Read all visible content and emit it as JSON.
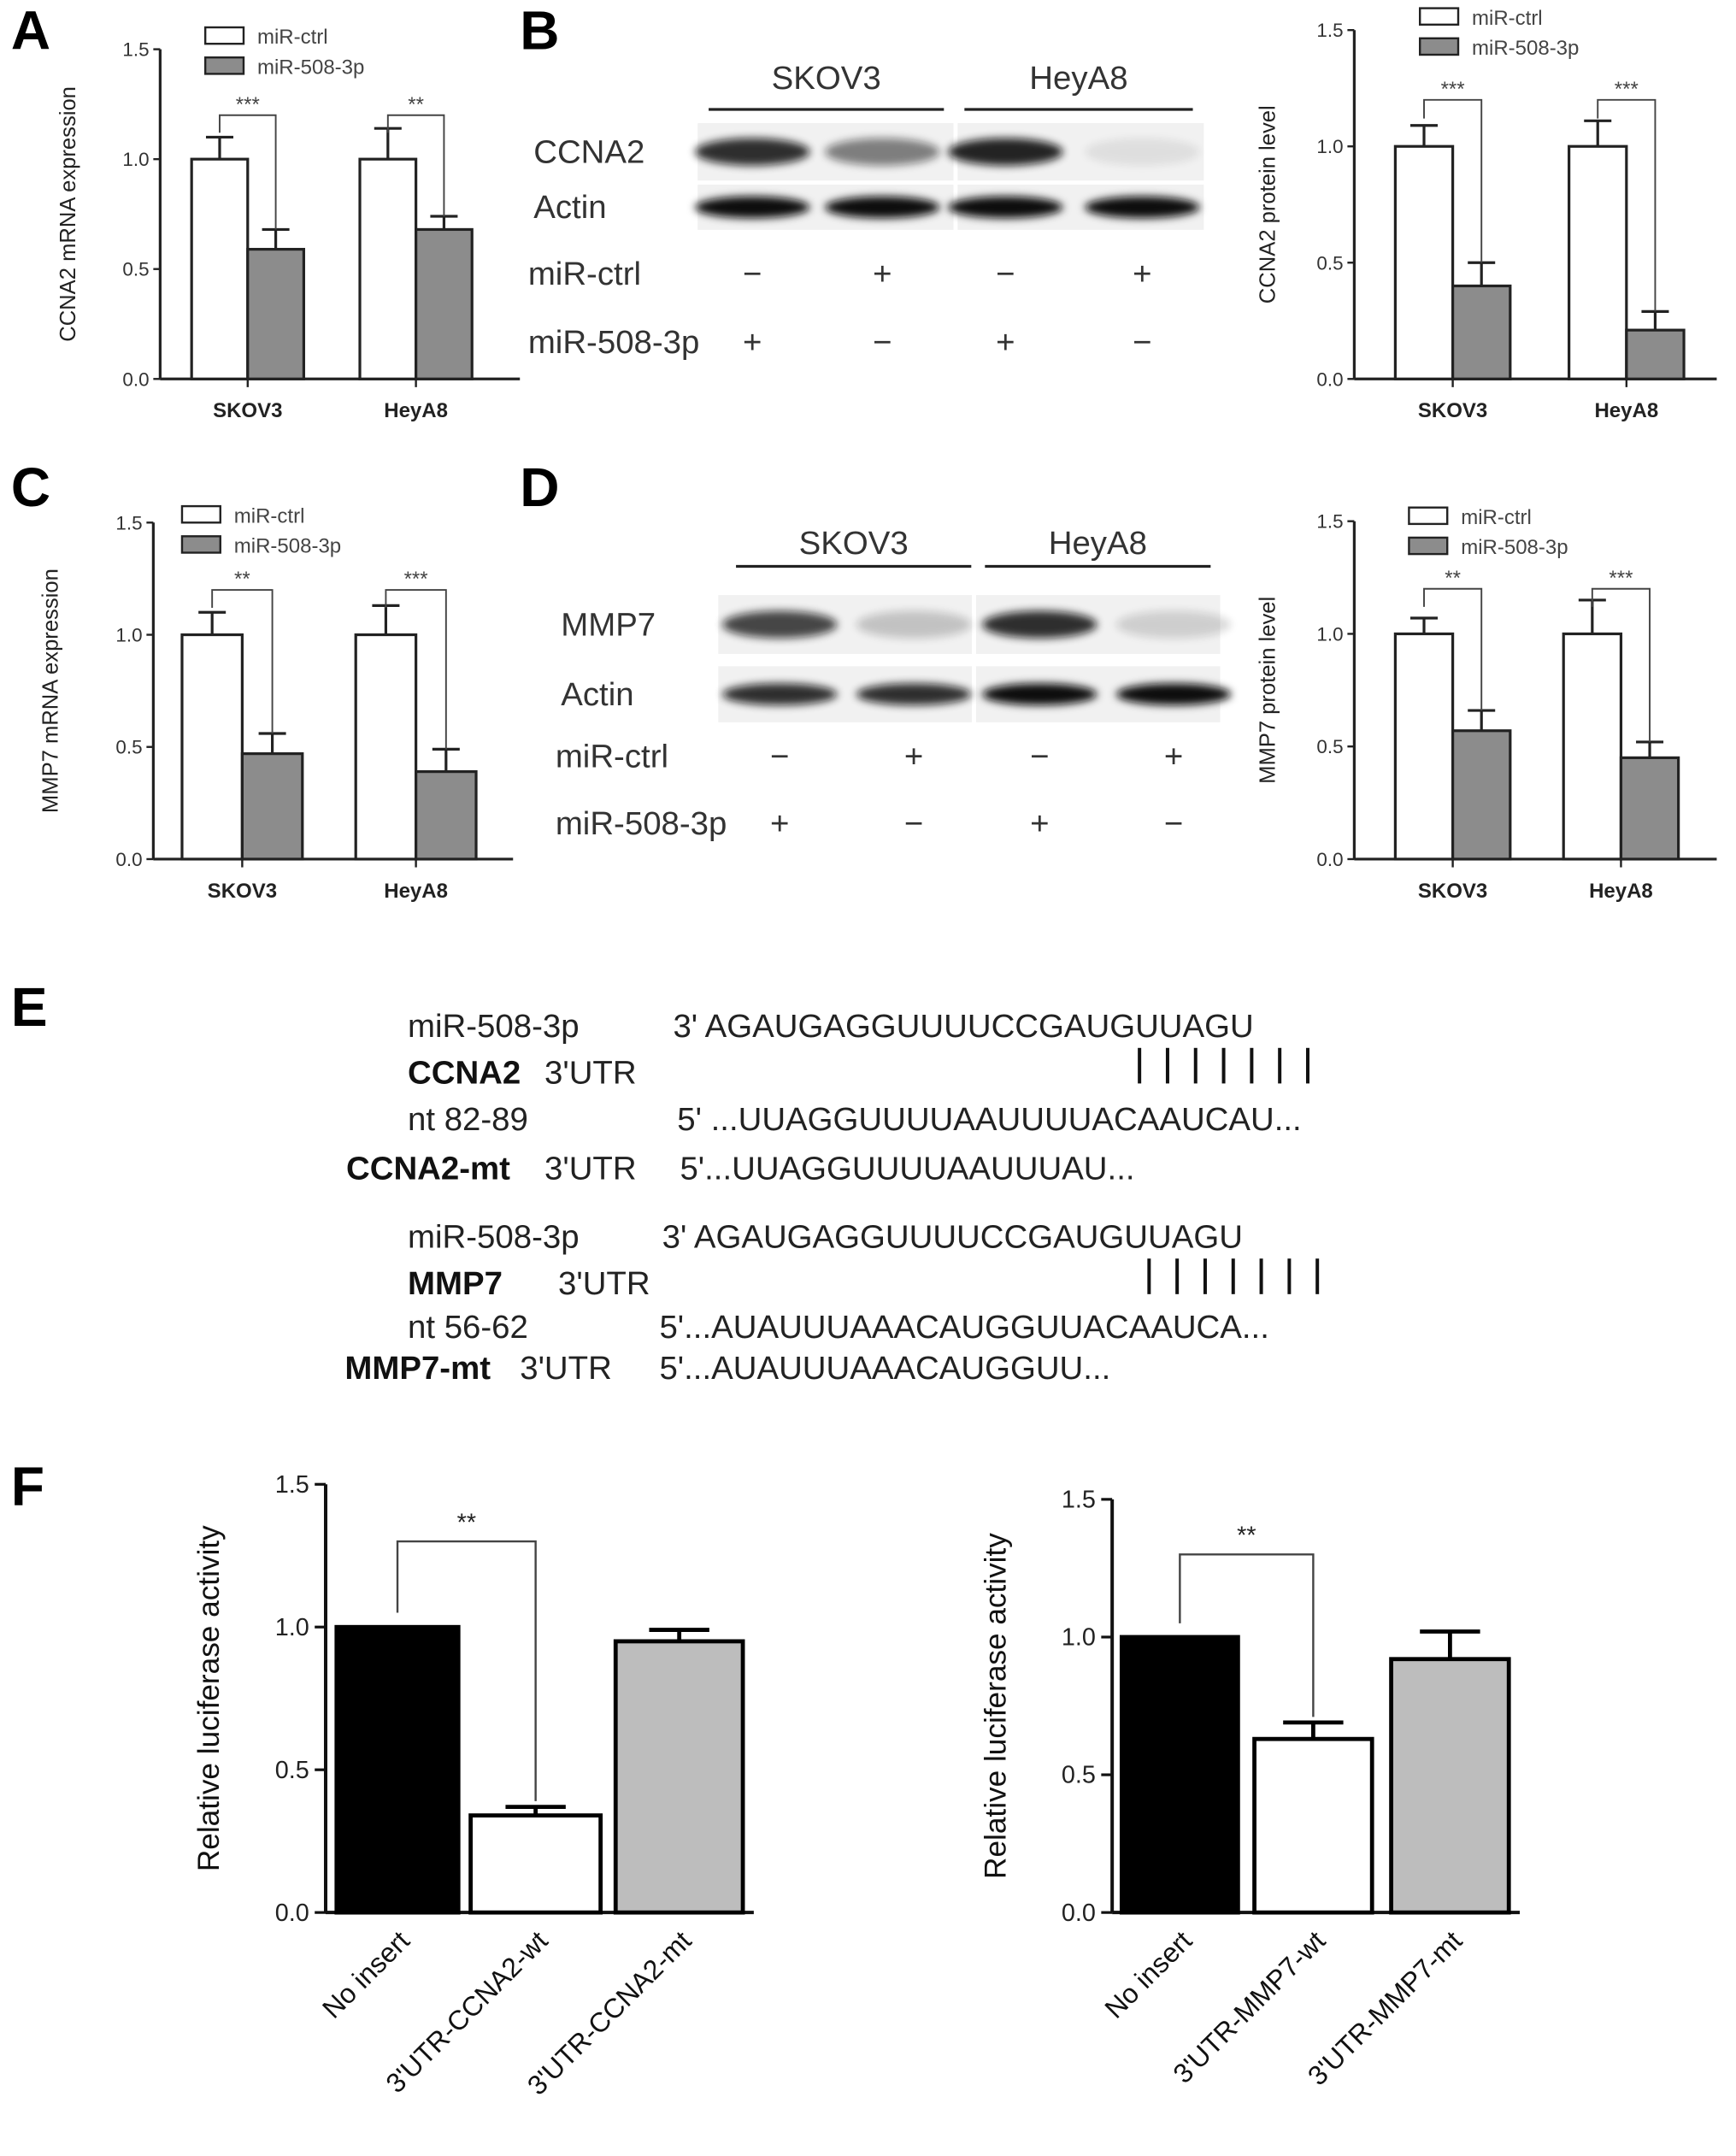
{
  "panels": {
    "A": "A",
    "B": "B",
    "C": "C",
    "D": "D",
    "E": "E",
    "F": "F"
  },
  "colors": {
    "ctrl": "#ffffff",
    "mir": "#8c8c8c",
    "no_insert": "#000000",
    "wt": "#ffffff",
    "mt": "#bdbdbd"
  },
  "chart_data": [
    {
      "id": "A",
      "type": "bar",
      "ylabel": "CCNA2 mRNA expression",
      "ylim": [
        0,
        1.5
      ],
      "yticks": [
        "0.0",
        "0.5",
        "1.0",
        "1.5"
      ],
      "categories": [
        "SKOV3",
        "HeyA8"
      ],
      "series": [
        {
          "name": "miR-ctrl",
          "values": [
            1.0,
            1.0
          ],
          "errors": [
            0.1,
            0.14
          ]
        },
        {
          "name": "miR-508-3p",
          "values": [
            0.59,
            0.68
          ],
          "errors": [
            0.09,
            0.06
          ]
        }
      ],
      "significance": [
        "***",
        "**"
      ],
      "legend": "top-left"
    },
    {
      "id": "B",
      "type": "bar",
      "ylabel": "CCNA2 protein level",
      "ylim": [
        0,
        1.5
      ],
      "yticks": [
        "0.0",
        "0.5",
        "1.0",
        "1.5"
      ],
      "categories": [
        "SKOV3",
        "HeyA8"
      ],
      "series": [
        {
          "name": "miR-ctrl",
          "values": [
            1.0,
            1.0
          ],
          "errors": [
            0.09,
            0.11
          ]
        },
        {
          "name": "miR-508-3p",
          "values": [
            0.4,
            0.21
          ],
          "errors": [
            0.1,
            0.08
          ]
        }
      ],
      "significance": [
        "***",
        "***"
      ],
      "legend": "top-left"
    },
    {
      "id": "C",
      "type": "bar",
      "ylabel": "MMP7 mRNA expression",
      "ylim": [
        0,
        1.5
      ],
      "yticks": [
        "0.0",
        "0.5",
        "1.0",
        "1.5"
      ],
      "categories": [
        "SKOV3",
        "HeyA8"
      ],
      "series": [
        {
          "name": "miR-ctrl",
          "values": [
            1.0,
            1.0
          ],
          "errors": [
            0.1,
            0.13
          ]
        },
        {
          "name": "miR-508-3p",
          "values": [
            0.47,
            0.39
          ],
          "errors": [
            0.09,
            0.1
          ]
        }
      ],
      "significance": [
        "**",
        "***"
      ],
      "legend": "top-left"
    },
    {
      "id": "D",
      "type": "bar",
      "ylabel": "MMP7 protein level",
      "ylim": [
        0,
        1.5
      ],
      "yticks": [
        "0.0",
        "0.5",
        "1.0",
        "1.5"
      ],
      "categories": [
        "SKOV3",
        "HeyA8"
      ],
      "series": [
        {
          "name": "miR-ctrl",
          "values": [
            1.0,
            1.0
          ],
          "errors": [
            0.07,
            0.15
          ]
        },
        {
          "name": "miR-508-3p",
          "values": [
            0.57,
            0.45
          ],
          "errors": [
            0.09,
            0.07
          ]
        }
      ],
      "significance": [
        "**",
        "***"
      ],
      "legend": "top-left"
    },
    {
      "id": "F1",
      "type": "bar",
      "ylabel": "Relative luciferase activity",
      "ylim": [
        0,
        1.5
      ],
      "yticks": [
        "0.0",
        "0.5",
        "1.0",
        "1.5"
      ],
      "categories": [
        "No insert",
        "3'UTR-CCNA2-wt",
        "3'UTR-CCNA2-mt"
      ],
      "values": [
        1.0,
        0.34,
        0.95
      ],
      "errors": [
        0,
        0.03,
        0.04
      ],
      "significance": "**"
    },
    {
      "id": "F2",
      "type": "bar",
      "ylabel": "Relative luciferase activity",
      "ylim": [
        0,
        1.5
      ],
      "yticks": [
        "0.0",
        "0.5",
        "1.0",
        "1.5"
      ],
      "categories": [
        "No insert",
        "3'UTR-MMP7-wt",
        "3'UTR-MMP7-mt"
      ],
      "values": [
        1.0,
        0.63,
        0.92
      ],
      "errors": [
        0,
        0.06,
        0.1
      ],
      "significance": "**"
    }
  ],
  "blots": [
    {
      "id": "B",
      "cell_lines": [
        "SKOV3",
        "HeyA8"
      ],
      "rows": [
        {
          "label": "CCNA2",
          "band_intensity": [
            0.85,
            0.5,
            0.9,
            0.08
          ]
        },
        {
          "label": "Actin",
          "band_intensity": [
            1,
            1,
            1,
            1
          ]
        }
      ],
      "treatments": [
        {
          "label": "miR-ctrl",
          "signs": [
            "−",
            "+",
            "−",
            "+"
          ]
        },
        {
          "label": "miR-508-3p",
          "signs": [
            "+",
            "−",
            "+",
            "−"
          ]
        }
      ]
    },
    {
      "id": "D",
      "cell_lines": [
        "SKOV3",
        "HeyA8"
      ],
      "rows": [
        {
          "label": "MMP7",
          "band_intensity": [
            0.75,
            0.2,
            0.85,
            0.15
          ]
        },
        {
          "label": "Actin",
          "band_intensity": [
            0.85,
            0.85,
            1,
            1
          ]
        }
      ],
      "treatments": [
        {
          "label": "miR-ctrl",
          "signs": [
            "−",
            "+",
            "−",
            "+"
          ]
        },
        {
          "label": "miR-508-3p",
          "signs": [
            "+",
            "−",
            "+",
            "−"
          ]
        }
      ]
    }
  ],
  "sequences": [
    {
      "mir_label": "miR-508-3p",
      "mir_seq": "3' AGAUGAGGUUUUCCGAUGUUAGU",
      "gene": "CCNA2",
      "utr": "3'UTR",
      "pairs": "| | | | | | |",
      "nt": "nt 82-89",
      "wt_seq": "5' ...UUAGGUUUUAAUUUUACAAUCAU...",
      "mt_gene": "CCNA2-mt",
      "mt_utr": "3'UTR",
      "mt_seq": "5'...UUAGGUUUUAAUUUAU..."
    },
    {
      "mir_label": "miR-508-3p",
      "mir_seq": "3' AGAUGAGGUUUUCCGAUGUUAGU",
      "gene": "MMP7",
      "utr": "3'UTR",
      "pairs": "| | | | | | |",
      "nt": "nt 56-62",
      "wt_seq": "5'...AUAUUUAAACAUGGUUACAAUCA...",
      "mt_gene": "MMP7-mt",
      "mt_utr": "3'UTR",
      "mt_seq": "5'...AUAUUUAAACAUGGUU..."
    }
  ]
}
